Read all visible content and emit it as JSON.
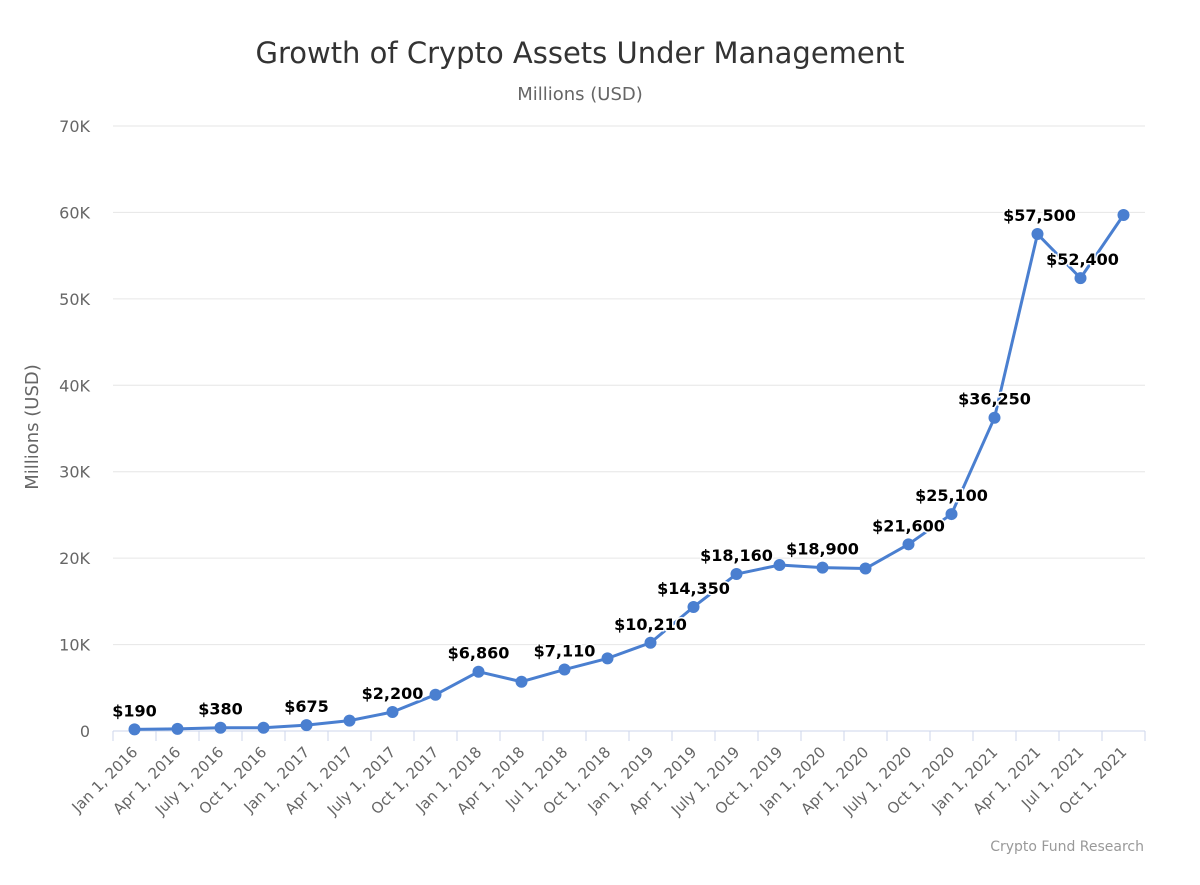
{
  "chart_data": {
    "type": "line",
    "title": "Growth of Crypto Assets Under Management",
    "subtitle": "Millions (USD)",
    "xlabel": "",
    "ylabel": "Millions (USD)",
    "ylim": [
      0,
      70000
    ],
    "y_ticks": [
      0,
      10000,
      20000,
      30000,
      40000,
      50000,
      60000,
      70000
    ],
    "y_tick_labels": [
      "0",
      "10K",
      "20K",
      "30K",
      "40K",
      "50K",
      "60K",
      "70K"
    ],
    "grid": true,
    "legend": "none",
    "categories": [
      "Jan 1, 2016",
      "Apr 1, 2016",
      "July 1, 2016",
      "Oct 1, 2016",
      "Jan 1, 2017",
      "Apr 1, 2017",
      "July 1, 2017",
      "Oct 1, 2017",
      "Jan 1, 2018",
      "Apr 1, 2018",
      "Jul 1, 2018",
      "Oct 1, 2018",
      "Jan 1, 2019",
      "Apr 1, 2019",
      "July 1, 2019",
      "Oct 1, 2019",
      "Jan 1, 2020",
      "Apr 1, 2020",
      "July 1, 2020",
      "Oct 1, 2020",
      "Jan 1, 2021",
      "Apr 1, 2021",
      "Jul 1, 2021",
      "Oct 1, 2021"
    ],
    "series": [
      {
        "color": "#4a7fd0",
        "values": [
          190,
          250,
          380,
          380,
          675,
          1200,
          2200,
          4200,
          6860,
          5700,
          7110,
          8400,
          10210,
          14350,
          18160,
          19200,
          18900,
          18800,
          21600,
          25100,
          36250,
          57500,
          52400,
          59700
        ],
        "data_labels": [
          "$190",
          "",
          "$380",
          "",
          "$675",
          "",
          "$2,200",
          "",
          "$6,860",
          "",
          "$7,110",
          "",
          "$10,210",
          "$14,350",
          "$18,160",
          "",
          "$18,900",
          "",
          "$21,600",
          "$25,100",
          "$36,250",
          "$57,500",
          "$52,400",
          ""
        ]
      }
    ],
    "credits": "Crypto Fund Research"
  }
}
